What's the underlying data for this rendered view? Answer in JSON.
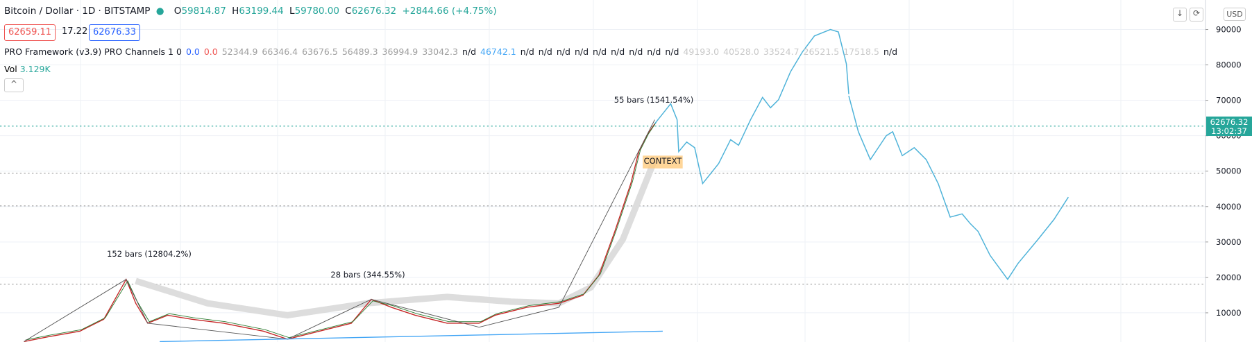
{
  "header": {
    "symbol": "Bitcoin / Dollar · 1D · BITSTAMP",
    "open_label": "O",
    "open": "59814.87",
    "high_label": "H",
    "high": "63199.44",
    "low_label": "L",
    "low": "59780.00",
    "close_label": "C",
    "close": "62676.32",
    "change": "+2844.66 (+4.75%)"
  },
  "quote": {
    "sell": "62659.11",
    "spread": "17.22",
    "buy": "62676.33"
  },
  "indicator": {
    "name": "PRO Framework (v3.9) PRO Channels 1 0",
    "values": [
      {
        "text": "0.0",
        "color": "#2962ff"
      },
      {
        "text": "0.0",
        "color": "#ef5350"
      },
      {
        "text": "52344.9",
        "color": "#9e9e9e"
      },
      {
        "text": "66346.4",
        "color": "#9e9e9e"
      },
      {
        "text": "63676.5",
        "color": "#9e9e9e"
      },
      {
        "text": "56489.3",
        "color": "#9e9e9e"
      },
      {
        "text": "36994.9",
        "color": "#9e9e9e"
      },
      {
        "text": "33042.3",
        "color": "#9e9e9e"
      },
      {
        "text": "n/d",
        "color": "#131722"
      },
      {
        "text": "46742.1",
        "color": "#42a5f5"
      },
      {
        "text": "n/d",
        "color": "#131722"
      },
      {
        "text": "n/d",
        "color": "#131722"
      },
      {
        "text": "n/d",
        "color": "#131722"
      },
      {
        "text": "n/d",
        "color": "#131722"
      },
      {
        "text": "n/d",
        "color": "#131722"
      },
      {
        "text": "n/d",
        "color": "#131722"
      },
      {
        "text": "n/d",
        "color": "#131722"
      },
      {
        "text": "n/d",
        "color": "#131722"
      },
      {
        "text": "n/d",
        "color": "#131722"
      },
      {
        "text": "49193.0",
        "color": "#c8c8c8"
      },
      {
        "text": "40528.0",
        "color": "#c8c8c8"
      },
      {
        "text": "33524.7",
        "color": "#c8c8c8"
      },
      {
        "text": "26521.5",
        "color": "#c8c8c8"
      },
      {
        "text": "17518.5",
        "color": "#c8c8c8"
      },
      {
        "text": "n/d",
        "color": "#131722"
      }
    ]
  },
  "volume": {
    "label": "Vol",
    "value": "3.129K"
  },
  "annotations": {
    "first": "152 bars (12804.2%)",
    "second": "28 bars (344.55%)",
    "third": "55 bars (1541.54%)",
    "context": "CONTEXT"
  },
  "price_axis": {
    "currency": "USD",
    "ylim": [
      1760,
      98330
    ],
    "ticks": [
      10000,
      20000,
      30000,
      40000,
      50000,
      60000,
      70000,
      80000,
      90000
    ],
    "last_price": 62676.32,
    "countdown": "13:02:37"
  }
}
